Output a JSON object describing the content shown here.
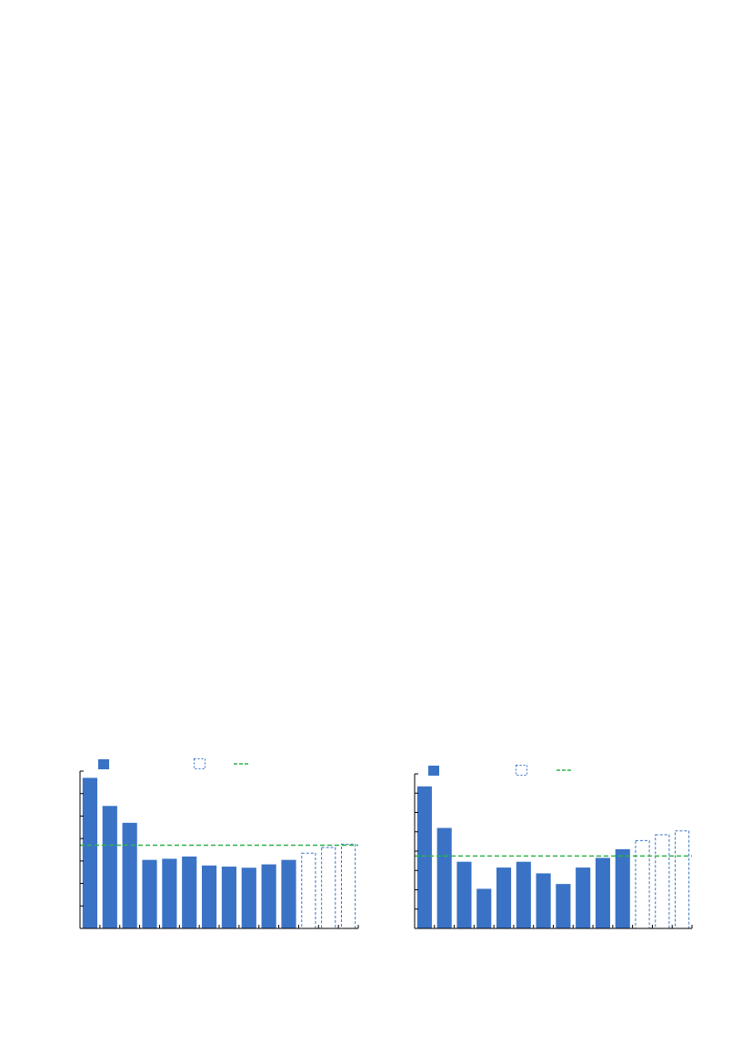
{
  "colors": {
    "bar": "#3a73c6",
    "projected_outline": "#3a73c6",
    "average_line": "#2fb34a",
    "axis": "#000000",
    "background": "#ffffff"
  },
  "chart_data": [
    {
      "type": "bar",
      "title": "",
      "xlabel": "",
      "ylabel": "",
      "ylim": [
        0,
        7
      ],
      "y_tick_count": 8,
      "x_tick_count": 14,
      "grid": false,
      "legend": {
        "placement": "top",
        "items": [
          {
            "kind": "filled-bar",
            "label": ""
          },
          {
            "kind": "dashed-outline-bar",
            "label": ""
          },
          {
            "kind": "dashed-line",
            "label": ""
          }
        ]
      },
      "series": [
        {
          "kind": "actual",
          "values": [
            6.7,
            5.45,
            4.7,
            3.05,
            3.1,
            3.2,
            2.8,
            2.75,
            2.7,
            2.85,
            3.05
          ]
        },
        {
          "kind": "projected",
          "values": [
            3.35,
            3.6,
            3.75
          ]
        }
      ],
      "reference_line": 3.7
    },
    {
      "type": "bar",
      "title": "",
      "xlabel": "",
      "ylabel": "",
      "ylim": [
        0,
        8
      ],
      "y_tick_count": 9,
      "x_tick_count": 14,
      "grid": false,
      "legend": {
        "placement": "top",
        "items": [
          {
            "kind": "filled-bar",
            "label": ""
          },
          {
            "kind": "dashed-outline-bar",
            "label": ""
          },
          {
            "kind": "dashed-line",
            "label": ""
          }
        ]
      },
      "series": [
        {
          "kind": "actual",
          "values": [
            7.35,
            5.2,
            3.45,
            2.05,
            3.15,
            3.45,
            2.85,
            2.3,
            3.15,
            3.65,
            4.1
          ]
        },
        {
          "kind": "projected",
          "values": [
            4.55,
            4.85,
            5.05
          ]
        }
      ],
      "reference_line": 3.75
    }
  ]
}
